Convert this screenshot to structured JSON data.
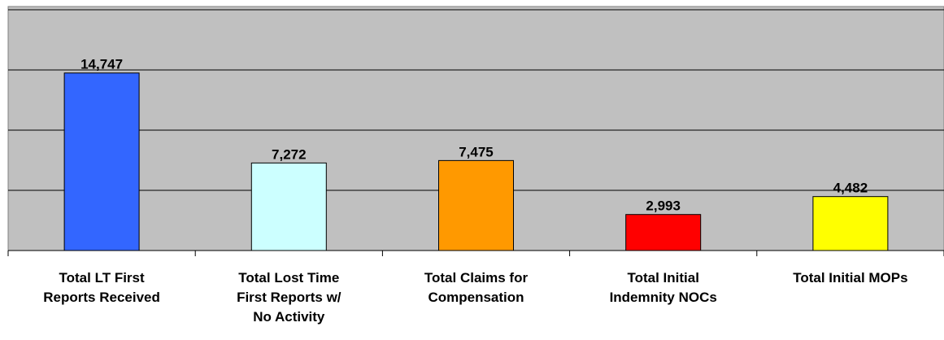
{
  "chart_data": {
    "type": "bar",
    "categories": [
      "Total LT First\nReports Received",
      "Total Lost Time\nFirst Reports w/\nNo Activity",
      "Total Claims for\nCompensation",
      "Total Initial\nIndemnity NOCs",
      "Total Initial MOPs"
    ],
    "values": [
      14747,
      7272,
      7475,
      2993,
      4482
    ],
    "value_labels": [
      "14,747",
      "7,272",
      "7,475",
      "2,993",
      "4,482"
    ],
    "colors": [
      "#3366ff",
      "#ccffff",
      "#ff9900",
      "#ff0000",
      "#ffff00"
    ],
    "ylim": [
      0,
      20000
    ],
    "yticks": [
      0,
      5000,
      10000,
      15000,
      20000
    ],
    "grid": true
  }
}
